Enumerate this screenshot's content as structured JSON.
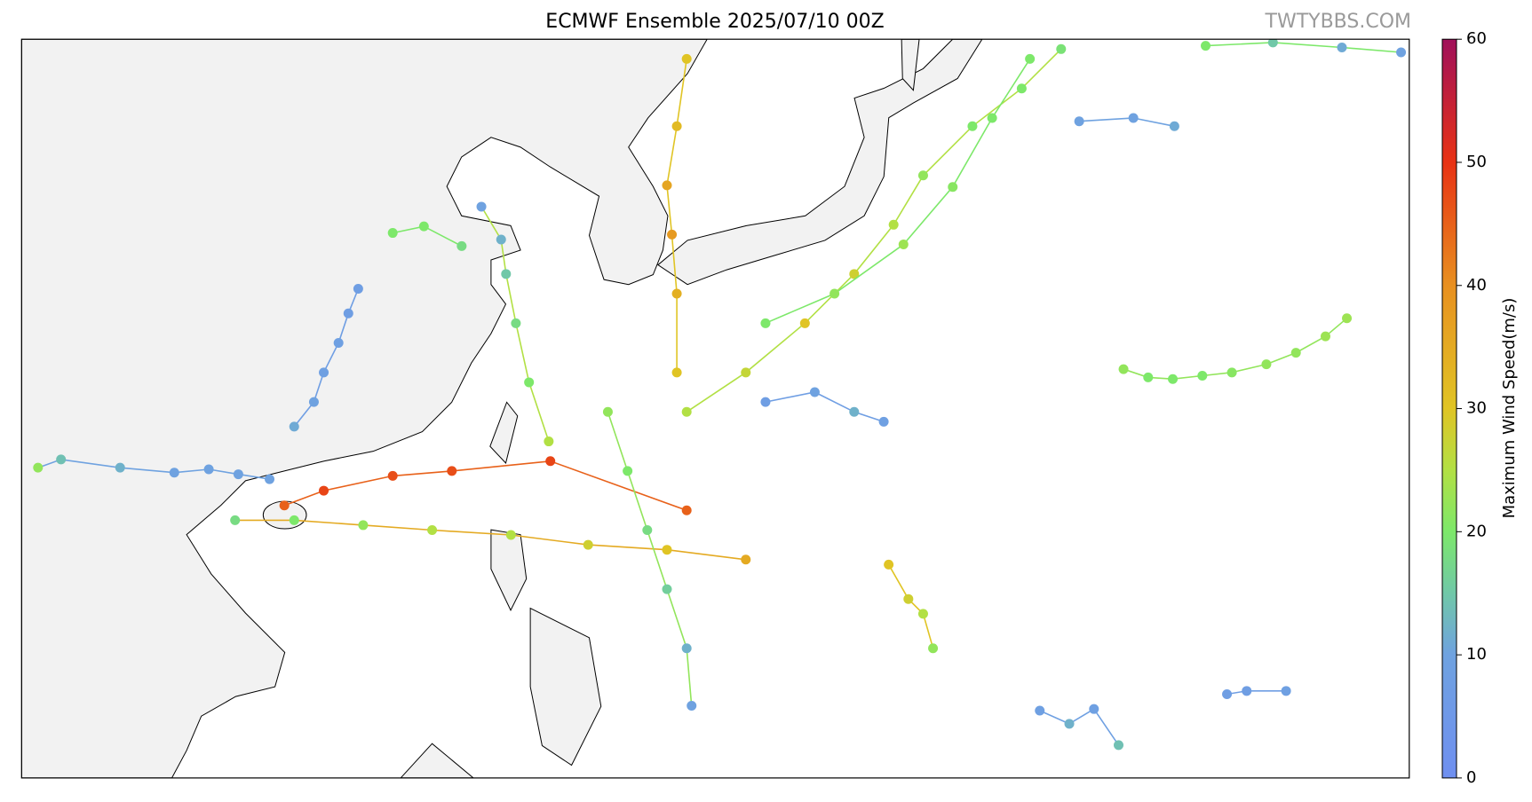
{
  "chart_data": {
    "type": "map",
    "title": "ECMWF Ensemble 2025/07/10 00Z",
    "watermark": "TWTYBBS.COM",
    "xlim": [
      91.8,
      176.3
    ],
    "ylim": [
      2.5,
      47.5
    ],
    "colorbar": {
      "label": "Maximum Wind Speed(m/s)",
      "lim": [
        0,
        60
      ],
      "ticks": [
        0,
        10,
        20,
        30,
        40,
        50,
        60
      ],
      "colorscale": [
        {
          "value": 0,
          "color": "#6f8ff0"
        },
        {
          "value": 10,
          "color": "#6fa2e0"
        },
        {
          "value": 15,
          "color": "#70c8a8"
        },
        {
          "value": 20,
          "color": "#7de86a"
        },
        {
          "value": 25,
          "color": "#b2e044"
        },
        {
          "value": 30,
          "color": "#e0c424"
        },
        {
          "value": 40,
          "color": "#e89020"
        },
        {
          "value": 50,
          "color": "#e83214"
        },
        {
          "value": 60,
          "color": "#a0105a"
        }
      ]
    },
    "tracks": [
      {
        "lon": [
          132.3,
          124.0,
          118.0,
          114.4,
          110.2,
          107.8
        ],
        "lat": [
          18.8,
          21.8,
          21.2,
          20.9,
          20.0,
          19.1
        ],
        "wind": [
          45,
          48,
          47,
          47,
          48,
          45
        ]
      },
      {
        "lon": [
          158.9,
          160.4,
          161.9,
          163.7,
          165.5,
          167.6,
          169.4,
          171.2,
          172.5
        ],
        "lat": [
          27.4,
          26.9,
          26.8,
          27.0,
          27.2,
          27.7,
          28.4,
          29.4,
          30.5
        ],
        "wind": [
          22,
          20,
          20,
          20,
          21,
          22,
          22,
          23,
          23
        ]
      },
      {
        "lon": [
          106.9,
          105.0,
          103.2,
          101.1,
          97.8,
          94.2,
          92.8
        ],
        "lat": [
          20.7,
          21.0,
          21.3,
          21.1,
          21.4,
          21.9,
          21.4
        ],
        "wind": [
          10,
          10,
          10,
          10,
          12,
          14,
          22
        ]
      },
      {
        "lon": [
          132.3,
          135.9,
          139.5,
          142.5,
          144.9,
          146.7,
          149.7,
          152.7,
          155.1
        ],
        "lat": [
          24.8,
          27.2,
          30.2,
          33.2,
          36.2,
          39.2,
          42.2,
          44.5,
          46.9
        ],
        "wind": [
          25,
          27,
          30,
          28,
          25,
          22,
          20,
          20,
          19
        ]
      },
      {
        "lon": [
          156.2,
          159.5,
          162.0
        ],
        "lat": [
          42.5,
          42.7,
          42.2
        ],
        "wind": [
          10,
          10,
          11
        ]
      },
      {
        "lon": [
          163.9,
          168.0,
          172.2,
          175.8
        ],
        "lat": [
          47.1,
          47.3,
          47.0,
          46.7
        ],
        "wind": [
          20,
          15,
          11,
          10
        ]
      },
      {
        "lon": [
          144.6,
          145.8,
          146.7,
          147.3
        ],
        "lat": [
          15.5,
          13.4,
          12.5,
          10.4
        ],
        "wind": [
          30,
          28,
          25,
          22
        ]
      },
      {
        "lon": [
          112.3,
          111.7,
          111.1,
          110.2,
          109.6,
          108.4
        ],
        "lat": [
          32.3,
          30.8,
          29.0,
          27.2,
          25.4,
          23.9
        ],
        "wind": [
          8,
          8,
          9,
          9,
          10,
          11
        ]
      },
      {
        "lon": [
          123.9,
          122.7,
          121.9,
          121.3,
          121.0,
          119.8
        ],
        "lat": [
          23.0,
          26.6,
          30.2,
          33.2,
          35.3,
          37.3
        ],
        "wind": [
          25,
          20,
          18,
          15,
          12,
          10
        ]
      },
      {
        "lon": [
          131.7,
          131.7,
          131.4,
          131.1,
          131.7,
          132.3
        ],
        "lat": [
          27.2,
          32.0,
          35.6,
          38.6,
          42.2,
          46.3
        ],
        "wind": [
          30,
          34,
          38,
          36,
          32,
          30
        ]
      },
      {
        "lon": [
          135.9,
          131.1,
          126.3,
          121.6,
          116.8,
          112.6,
          108.4,
          104.8
        ],
        "lat": [
          15.8,
          16.4,
          16.7,
          17.3,
          17.6,
          17.9,
          18.2,
          18.2
        ],
        "wind": [
          35,
          30,
          28,
          25,
          25,
          22,
          20,
          18
        ]
      },
      {
        "lon": [
          165.2,
          166.4,
          168.8
        ],
        "lat": [
          7.6,
          7.8,
          7.8
        ],
        "wind": [
          8,
          8,
          9
        ]
      },
      {
        "lon": [
          153.8,
          155.6,
          157.1,
          158.6
        ],
        "lat": [
          6.6,
          5.8,
          6.7,
          4.5
        ],
        "wind": [
          9,
          12,
          9,
          14
        ]
      },
      {
        "lon": [
          137.1,
          140.1,
          142.5,
          144.3
        ],
        "lat": [
          25.4,
          26.0,
          24.8,
          24.2
        ],
        "wind": [
          8,
          10,
          12,
          9
        ]
      },
      {
        "lon": [
          127.5,
          128.7,
          129.9,
          131.1,
          132.3,
          132.6
        ],
        "lat": [
          24.8,
          21.2,
          17.6,
          14.0,
          10.4,
          6.9
        ],
        "wind": [
          22,
          20,
          18,
          16,
          12,
          10
        ]
      },
      {
        "lon": [
          137.1,
          141.3,
          145.5,
          148.5,
          150.9,
          153.2
        ],
        "lat": [
          30.2,
          32.0,
          35.0,
          38.5,
          42.7,
          46.3
        ],
        "wind": [
          20,
          22,
          23,
          21,
          20,
          20
        ]
      },
      {
        "lon": [
          114.4,
          116.3,
          118.6
        ],
        "lat": [
          35.7,
          36.1,
          34.9
        ],
        "wind": [
          20,
          20,
          18
        ]
      }
    ]
  }
}
